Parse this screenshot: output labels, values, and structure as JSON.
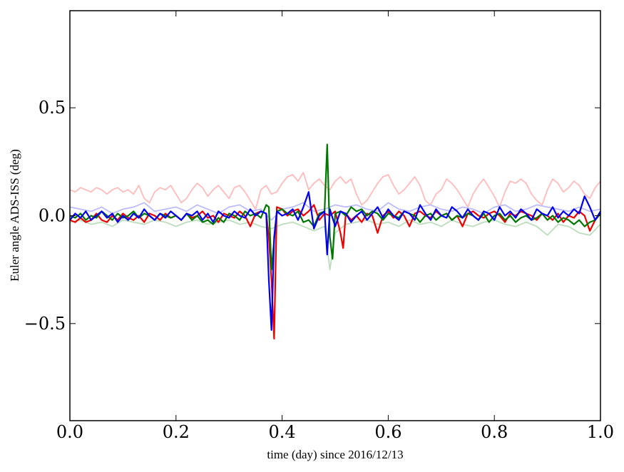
{
  "chart_data": {
    "type": "line",
    "title": "",
    "xlabel": "time (day) since 2016/12/13",
    "ylabel": "Euler angle ADS-ISS (deg)",
    "xlim": [
      0.0,
      1.0
    ],
    "ylim": [
      -0.95,
      0.95
    ],
    "xticks": [
      0.0,
      0.2,
      0.4,
      0.6,
      0.8,
      1.0
    ],
    "xtick_labels": [
      "0.0",
      "0.2",
      "0.4",
      "0.6",
      "0.8",
      "1.0"
    ],
    "yticks": [
      -0.5,
      0.0,
      0.5
    ],
    "ytick_labels": [
      "−0.5",
      "0.0",
      "0.5"
    ],
    "grid": false,
    "legend": "none",
    "series": [
      {
        "color": "#ffbbbb",
        "x": [
          0.0,
          0.01,
          0.02,
          0.03,
          0.04,
          0.05,
          0.06,
          0.07,
          0.08,
          0.09,
          0.1,
          0.11,
          0.12,
          0.13,
          0.14,
          0.15,
          0.16,
          0.17,
          0.18,
          0.19,
          0.2,
          0.21,
          0.22,
          0.23,
          0.24,
          0.25,
          0.26,
          0.27,
          0.28,
          0.29,
          0.3,
          0.31,
          0.32,
          0.33,
          0.34,
          0.35,
          0.36,
          0.37,
          0.38,
          0.39,
          0.4,
          0.41,
          0.42,
          0.43,
          0.44,
          0.45,
          0.46,
          0.47,
          0.48,
          0.49,
          0.5,
          0.51,
          0.52,
          0.53,
          0.54,
          0.55,
          0.56,
          0.57,
          0.58,
          0.59,
          0.6,
          0.61,
          0.62,
          0.63,
          0.64,
          0.65,
          0.66,
          0.67,
          0.68,
          0.69,
          0.7,
          0.71,
          0.72,
          0.73,
          0.74,
          0.75,
          0.76,
          0.77,
          0.78,
          0.79,
          0.8,
          0.81,
          0.82,
          0.83,
          0.84,
          0.85,
          0.86,
          0.87,
          0.88,
          0.89,
          0.9,
          0.91,
          0.92,
          0.93,
          0.94,
          0.95,
          0.96,
          0.97,
          0.98,
          0.99,
          1.0
        ],
        "y": [
          0.12,
          0.11,
          0.13,
          0.12,
          0.11,
          0.13,
          0.12,
          0.1,
          0.12,
          0.13,
          0.11,
          0.12,
          0.1,
          0.14,
          0.08,
          0.06,
          0.11,
          0.13,
          0.12,
          0.14,
          0.1,
          0.06,
          0.08,
          0.12,
          0.15,
          0.13,
          0.09,
          0.12,
          0.14,
          0.11,
          0.08,
          0.13,
          0.14,
          0.11,
          0.07,
          0.03,
          0.12,
          0.14,
          0.1,
          0.11,
          0.15,
          0.18,
          0.19,
          0.16,
          0.2,
          0.12,
          0.15,
          0.17,
          0.14,
          0.12,
          0.16,
          0.18,
          0.15,
          0.17,
          0.1,
          0.05,
          0.07,
          0.11,
          0.15,
          0.18,
          0.19,
          0.14,
          0.1,
          0.12,
          0.15,
          0.18,
          0.14,
          0.07,
          0.05,
          0.1,
          0.12,
          0.17,
          0.15,
          0.12,
          0.08,
          0.04,
          0.1,
          0.14,
          0.17,
          0.13,
          0.09,
          0.04,
          0.11,
          0.16,
          0.15,
          0.17,
          0.15,
          0.1,
          0.07,
          0.05,
          0.12,
          0.17,
          0.15,
          0.11,
          0.13,
          0.16,
          0.14,
          0.1,
          0.08,
          0.13,
          0.16
        ]
      },
      {
        "color": "#bbbbff",
        "x": [
          0.0,
          0.02,
          0.04,
          0.06,
          0.08,
          0.1,
          0.12,
          0.14,
          0.16,
          0.18,
          0.2,
          0.22,
          0.24,
          0.26,
          0.28,
          0.3,
          0.32,
          0.34,
          0.36,
          0.38,
          0.4,
          0.42,
          0.44,
          0.46,
          0.48,
          0.5,
          0.52,
          0.54,
          0.56,
          0.58,
          0.6,
          0.62,
          0.64,
          0.66,
          0.68,
          0.7,
          0.72,
          0.74,
          0.76,
          0.78,
          0.8,
          0.82,
          0.84,
          0.86,
          0.88,
          0.9,
          0.92,
          0.94,
          0.96,
          0.98,
          1.0
        ],
        "y": [
          0.04,
          0.03,
          0.02,
          0.04,
          0.01,
          0.03,
          0.04,
          0.06,
          0.02,
          0.03,
          0.04,
          0.02,
          0.05,
          0.03,
          0.01,
          0.04,
          0.05,
          0.02,
          0.03,
          -0.02,
          0.03,
          0.04,
          0.06,
          0.02,
          0.03,
          0.05,
          0.04,
          0.05,
          0.03,
          0.02,
          0.06,
          0.03,
          0.02,
          0.04,
          0.05,
          0.03,
          0.02,
          0.04,
          0.03,
          0.01,
          0.04,
          0.05,
          0.02,
          0.03,
          0.05,
          0.04,
          0.03,
          0.02,
          0.04,
          0.02,
          0.03
        ]
      },
      {
        "color": "#bbddbb",
        "x": [
          0.0,
          0.02,
          0.04,
          0.06,
          0.08,
          0.1,
          0.12,
          0.14,
          0.16,
          0.18,
          0.2,
          0.22,
          0.24,
          0.26,
          0.28,
          0.3,
          0.32,
          0.34,
          0.36,
          0.38,
          0.4,
          0.42,
          0.44,
          0.46,
          0.48,
          0.49,
          0.5,
          0.52,
          0.54,
          0.56,
          0.58,
          0.6,
          0.62,
          0.64,
          0.66,
          0.68,
          0.7,
          0.72,
          0.74,
          0.76,
          0.78,
          0.8,
          0.82,
          0.84,
          0.86,
          0.88,
          0.9,
          0.92,
          0.94,
          0.96,
          0.98,
          1.0
        ],
        "y": [
          -0.03,
          -0.02,
          -0.04,
          -0.03,
          -0.05,
          -0.02,
          -0.03,
          -0.04,
          -0.02,
          -0.03,
          -0.05,
          -0.03,
          -0.02,
          -0.04,
          -0.03,
          -0.02,
          -0.04,
          -0.03,
          -0.05,
          -0.06,
          -0.04,
          -0.03,
          -0.05,
          -0.07,
          -0.05,
          -0.25,
          -0.08,
          -0.04,
          -0.03,
          -0.02,
          -0.04,
          -0.03,
          -0.05,
          -0.02,
          -0.04,
          -0.03,
          -0.05,
          -0.02,
          -0.04,
          -0.05,
          -0.03,
          -0.02,
          -0.04,
          -0.05,
          -0.03,
          -0.05,
          -0.09,
          -0.04,
          -0.05,
          -0.08,
          -0.09,
          -0.04
        ]
      },
      {
        "color": "#ee0000",
        "x": [
          0.0,
          0.01,
          0.02,
          0.03,
          0.04,
          0.05,
          0.06,
          0.07,
          0.08,
          0.09,
          0.1,
          0.11,
          0.12,
          0.13,
          0.14,
          0.15,
          0.16,
          0.17,
          0.18,
          0.19,
          0.2,
          0.21,
          0.22,
          0.23,
          0.24,
          0.25,
          0.26,
          0.27,
          0.28,
          0.29,
          0.3,
          0.31,
          0.32,
          0.33,
          0.34,
          0.35,
          0.36,
          0.37,
          0.375,
          0.38,
          0.385,
          0.39,
          0.4,
          0.41,
          0.42,
          0.43,
          0.44,
          0.45,
          0.46,
          0.47,
          0.48,
          0.49,
          0.5,
          0.51,
          0.515,
          0.52,
          0.53,
          0.54,
          0.55,
          0.56,
          0.57,
          0.58,
          0.59,
          0.6,
          0.61,
          0.62,
          0.63,
          0.64,
          0.65,
          0.66,
          0.67,
          0.68,
          0.69,
          0.7,
          0.71,
          0.72,
          0.73,
          0.74,
          0.75,
          0.76,
          0.77,
          0.78,
          0.79,
          0.8,
          0.81,
          0.82,
          0.83,
          0.84,
          0.85,
          0.86,
          0.87,
          0.88,
          0.89,
          0.9,
          0.91,
          0.92,
          0.93,
          0.94,
          0.95,
          0.96,
          0.97,
          0.98,
          0.99,
          1.0
        ],
        "y": [
          -0.02,
          -0.03,
          -0.01,
          -0.03,
          -0.02,
          0.01,
          -0.02,
          -0.03,
          0.0,
          -0.02,
          0.01,
          -0.01,
          -0.02,
          0.0,
          -0.03,
          0.01,
          0.0,
          -0.02,
          0.01,
          -0.01,
          0.0,
          -0.02,
          0.01,
          -0.01,
          0.0,
          0.02,
          -0.01,
          0.0,
          -0.03,
          0.01,
          0.0,
          -0.01,
          0.02,
          0.0,
          -0.05,
          0.01,
          0.02,
          0.01,
          -0.1,
          -0.3,
          -0.57,
          0.04,
          0.03,
          0.0,
          0.02,
          0.03,
          0.0,
          0.02,
          0.05,
          -0.02,
          0.01,
          0.0,
          0.02,
          -0.08,
          -0.15,
          0.01,
          -0.02,
          0.0,
          -0.03,
          0.01,
          0.0,
          -0.08,
          0.0,
          0.02,
          -0.01,
          0.02,
          0.0,
          -0.05,
          0.01,
          0.02,
          0.0,
          -0.01,
          0.02,
          0.0,
          0.01,
          -0.02,
          0.0,
          -0.05,
          0.01,
          0.02,
          0.0,
          -0.01,
          0.01,
          0.02,
          0.0,
          -0.03,
          0.01,
          0.0,
          0.02,
          0.01,
          0.0,
          -0.02,
          0.01,
          0.0,
          -0.02,
          0.01,
          -0.03,
          0.0,
          -0.01,
          0.02,
          0.0,
          -0.07,
          -0.02,
          0.01
        ]
      },
      {
        "color": "#007700",
        "x": [
          0.0,
          0.01,
          0.02,
          0.03,
          0.04,
          0.05,
          0.06,
          0.07,
          0.08,
          0.09,
          0.1,
          0.11,
          0.12,
          0.13,
          0.14,
          0.15,
          0.16,
          0.17,
          0.18,
          0.19,
          0.2,
          0.21,
          0.22,
          0.23,
          0.24,
          0.25,
          0.26,
          0.27,
          0.28,
          0.29,
          0.3,
          0.31,
          0.32,
          0.33,
          0.34,
          0.35,
          0.36,
          0.37,
          0.375,
          0.38,
          0.39,
          0.4,
          0.41,
          0.42,
          0.43,
          0.44,
          0.45,
          0.46,
          0.47,
          0.48,
          0.485,
          0.49,
          0.495,
          0.5,
          0.51,
          0.52,
          0.53,
          0.54,
          0.55,
          0.56,
          0.57,
          0.58,
          0.59,
          0.6,
          0.61,
          0.62,
          0.63,
          0.64,
          0.65,
          0.66,
          0.67,
          0.68,
          0.69,
          0.7,
          0.71,
          0.72,
          0.73,
          0.74,
          0.75,
          0.76,
          0.77,
          0.78,
          0.79,
          0.8,
          0.81,
          0.82,
          0.83,
          0.84,
          0.85,
          0.86,
          0.87,
          0.88,
          0.89,
          0.9,
          0.91,
          0.92,
          0.93,
          0.94,
          0.95,
          0.96,
          0.97,
          0.98,
          0.99,
          1.0
        ],
        "y": [
          0.0,
          -0.01,
          0.01,
          -0.02,
          0.0,
          -0.01,
          0.02,
          0.0,
          -0.02,
          0.01,
          -0.01,
          0.0,
          0.02,
          -0.01,
          0.01,
          0.0,
          -0.02,
          0.01,
          0.0,
          -0.01,
          0.0,
          -0.02,
          0.01,
          -0.02,
          0.0,
          -0.03,
          -0.02,
          -0.04,
          -0.01,
          -0.03,
          0.01,
          0.0,
          -0.02,
          0.02,
          0.0,
          0.01,
          -0.01,
          0.05,
          0.04,
          -0.25,
          0.02,
          0.03,
          0.01,
          0.0,
          0.02,
          -0.03,
          -0.02,
          -0.05,
          0.01,
          0.02,
          0.33,
          -0.1,
          -0.2,
          0.01,
          0.02,
          0.0,
          0.04,
          0.02,
          0.03,
          0.0,
          0.02,
          0.01,
          -0.02,
          0.01,
          0.0,
          -0.01,
          0.02,
          0.01,
          0.0,
          -0.03,
          0.0,
          0.01,
          -0.02,
          0.0,
          0.01,
          -0.02,
          0.0,
          -0.01,
          0.01,
          0.0,
          -0.02,
          0.01,
          -0.03,
          0.0,
          0.01,
          -0.02,
          0.0,
          -0.03,
          -0.01,
          0.0,
          -0.02,
          -0.01,
          0.01,
          -0.02,
          0.0,
          -0.03,
          -0.01,
          -0.02,
          -0.04,
          -0.02,
          -0.05,
          -0.03,
          -0.02,
          0.01
        ]
      },
      {
        "color": "#0000ee",
        "x": [
          0.0,
          0.01,
          0.02,
          0.03,
          0.04,
          0.05,
          0.06,
          0.07,
          0.08,
          0.09,
          0.1,
          0.11,
          0.12,
          0.13,
          0.14,
          0.15,
          0.16,
          0.17,
          0.18,
          0.19,
          0.2,
          0.21,
          0.22,
          0.23,
          0.24,
          0.25,
          0.26,
          0.27,
          0.28,
          0.29,
          0.3,
          0.31,
          0.32,
          0.33,
          0.34,
          0.35,
          0.36,
          0.37,
          0.375,
          0.38,
          0.385,
          0.39,
          0.4,
          0.41,
          0.42,
          0.43,
          0.44,
          0.45,
          0.46,
          0.47,
          0.48,
          0.485,
          0.49,
          0.5,
          0.51,
          0.52,
          0.53,
          0.54,
          0.55,
          0.56,
          0.57,
          0.58,
          0.59,
          0.6,
          0.61,
          0.62,
          0.63,
          0.64,
          0.65,
          0.66,
          0.67,
          0.68,
          0.69,
          0.7,
          0.71,
          0.72,
          0.73,
          0.74,
          0.75,
          0.76,
          0.77,
          0.78,
          0.79,
          0.8,
          0.81,
          0.82,
          0.83,
          0.84,
          0.85,
          0.86,
          0.87,
          0.88,
          0.89,
          0.9,
          0.91,
          0.92,
          0.93,
          0.94,
          0.95,
          0.96,
          0.97,
          0.98,
          0.99,
          1.0
        ],
        "y": [
          -0.02,
          0.01,
          -0.01,
          0.02,
          -0.02,
          0.0,
          0.02,
          -0.01,
          0.01,
          -0.03,
          0.0,
          -0.02,
          0.01,
          -0.01,
          0.03,
          0.0,
          -0.02,
          0.01,
          -0.01,
          0.02,
          0.0,
          -0.02,
          0.01,
          0.0,
          0.02,
          -0.02,
          0.01,
          -0.03,
          0.02,
          0.0,
          -0.01,
          0.02,
          0.0,
          -0.01,
          0.03,
          0.0,
          0.02,
          0.01,
          -0.3,
          -0.53,
          -0.1,
          0.02,
          0.0,
          0.01,
          0.03,
          -0.02,
          0.04,
          0.11,
          -0.06,
          0.0,
          0.02,
          -0.18,
          0.03,
          -0.05,
          0.02,
          0.01,
          -0.03,
          0.0,
          0.02,
          -0.02,
          0.01,
          0.04,
          -0.01,
          0.03,
          0.0,
          -0.02,
          0.02,
          0.01,
          -0.02,
          0.05,
          0.01,
          -0.02,
          0.03,
          0.0,
          -0.01,
          0.04,
          0.02,
          -0.01,
          0.03,
          0.0,
          -0.02,
          0.02,
          0.01,
          -0.02,
          0.04,
          0.0,
          0.02,
          -0.01,
          0.03,
          0.01,
          -0.02,
          0.03,
          0.01,
          0.0,
          0.04,
          -0.01,
          0.02,
          0.0,
          0.03,
          0.01,
          0.09,
          0.04,
          -0.02,
          0.02
        ]
      }
    ]
  }
}
